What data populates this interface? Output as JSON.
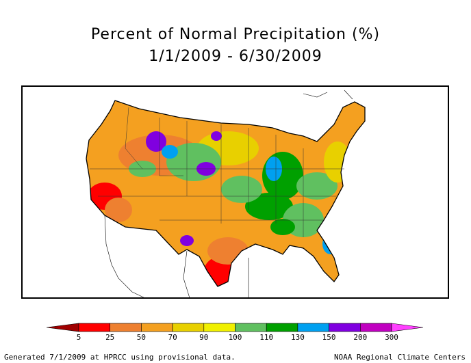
{
  "title": "Percent of Normal Precipitation (%)",
  "subtitle": "1/1/2009 - 6/30/2009",
  "legend": {
    "ticks": [
      "5",
      "25",
      "50",
      "70",
      "90",
      "100",
      "110",
      "130",
      "150",
      "200",
      "300"
    ],
    "colors": [
      "#a00000",
      "#ff0000",
      "#ee8030",
      "#f4a020",
      "#e8d000",
      "#f0f000",
      "#60c060",
      "#00a000",
      "#00a0f0",
      "#8000e0",
      "#c000c0",
      "#ff40ff"
    ]
  },
  "footer_left": "Generated 7/1/2009 at HPRCC using provisional data.",
  "footer_right": "NOAA Regional Climate Centers"
}
